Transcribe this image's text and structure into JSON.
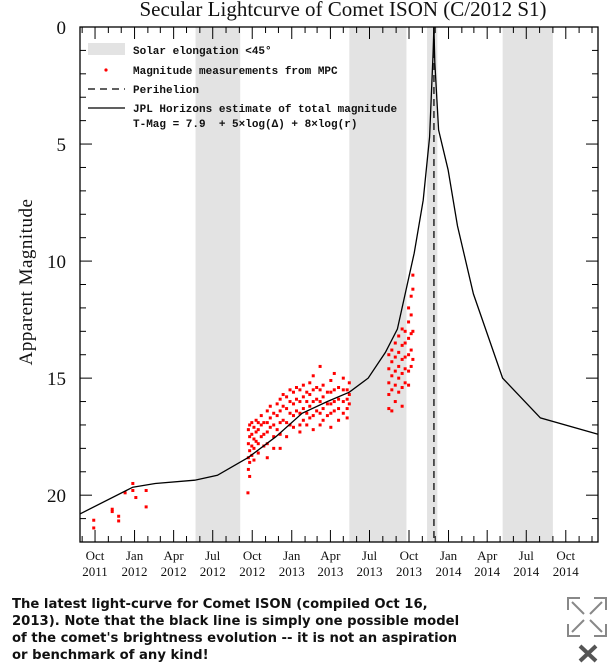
{
  "chart_data": {
    "type": "scatter",
    "title": "Secular Lightcurve of Comet ISON (C/2012 S1)",
    "ylabel": "Apparent Magnitude",
    "xlabel": "",
    "y_inverted": true,
    "ylim": [
      0,
      22
    ],
    "yticks": [
      0,
      5,
      10,
      15,
      20
    ],
    "xlim": [
      "2011-08-27",
      "2014-12-15"
    ],
    "xticks": [
      {
        "date": "2011-10-01",
        "label": [
          "Oct",
          "2011"
        ]
      },
      {
        "date": "2012-01-01",
        "label": [
          "Jan",
          "2012"
        ]
      },
      {
        "date": "2012-04-01",
        "label": [
          "Apr",
          "2012"
        ]
      },
      {
        "date": "2012-07-01",
        "label": [
          "Jul",
          "2012"
        ]
      },
      {
        "date": "2012-10-01",
        "label": [
          "Oct",
          "2012"
        ]
      },
      {
        "date": "2013-01-01",
        "label": [
          "Jan",
          "2013"
        ]
      },
      {
        "date": "2013-04-01",
        "label": [
          "Apr",
          "2013"
        ]
      },
      {
        "date": "2013-07-01",
        "label": [
          "Jul",
          "2013"
        ]
      },
      {
        "date": "2013-10-01",
        "label": [
          "Oct",
          "2013"
        ]
      },
      {
        "date": "2014-01-01",
        "label": [
          "Jan",
          "2014"
        ]
      },
      {
        "date": "2014-04-01",
        "label": [
          "Apr",
          "2014"
        ]
      },
      {
        "date": "2014-07-01",
        "label": [
          "Jul",
          "2014"
        ]
      },
      {
        "date": "2014-10-01",
        "label": [
          "Oct",
          "2014"
        ]
      }
    ],
    "grid": false,
    "legend_position": "top-left",
    "legend": {
      "elongation": "Solar elongation <45°",
      "measurements": "Magnitude measurements from MPC",
      "perihelion": "Perihelion",
      "model": "JPL Horizons estimate of total magnitude",
      "formula": "T-Mag = 7.9  + 5×log(Δ) + 8×log(r)"
    },
    "colors": {
      "measurements": "#ff0000",
      "elongation": "#e3e3e3",
      "model": "#000000",
      "perihelion": "#333333"
    },
    "elongation_bands": [
      [
        "2012-05-22",
        "2012-09-03"
      ],
      [
        "2013-05-15",
        "2013-09-25"
      ],
      [
        "2013-11-12",
        "2013-12-06"
      ],
      [
        "2014-05-07",
        "2014-09-01"
      ]
    ],
    "perihelion_date": "2013-11-28",
    "model_curve": [
      [
        "2011-08-15",
        20.8
      ],
      [
        "2011-12-28",
        19.66
      ],
      [
        "2012-02-18",
        19.5
      ],
      [
        "2012-05-20",
        19.36
      ],
      [
        "2012-07-12",
        19.15
      ],
      [
        "2012-09-21",
        18.4
      ],
      [
        "2012-11-25",
        17.5
      ],
      [
        "2013-01-25",
        16.5
      ],
      [
        "2013-03-25",
        16.0
      ],
      [
        "2013-05-15",
        15.6
      ],
      [
        "2013-06-28",
        15.0
      ],
      [
        "2013-08-07",
        13.9
      ],
      [
        "2013-09-04",
        12.9
      ],
      [
        "2013-10-13",
        9.66
      ],
      [
        "2013-11-03",
        7.4
      ],
      [
        "2013-11-18",
        4.7
      ],
      [
        "2013-11-26",
        1.1
      ],
      [
        "2013-11-28",
        -0.5
      ],
      [
        "2013-11-30",
        1.5
      ],
      [
        "2013-12-09",
        4.4
      ],
      [
        "2013-12-31",
        6.1
      ],
      [
        "2014-01-22",
        8.5
      ],
      [
        "2014-02-28",
        11.4
      ],
      [
        "2014-05-07",
        15.0
      ],
      [
        "2014-08-03",
        16.7
      ],
      [
        "2014-12-15",
        17.4
      ]
    ],
    "measurements": [
      {
        "date": "2011-09-28",
        "mags": [
          21.07,
          21.4
        ]
      },
      {
        "date": "2011-11-10",
        "mags": [
          20.6,
          20.7
        ]
      },
      {
        "date": "2011-11-25",
        "mags": [
          20.9,
          21.1
        ]
      },
      {
        "date": "2011-12-10",
        "mags": [
          19.9
        ]
      },
      {
        "date": "2011-12-28",
        "mags": [
          19.5,
          19.8
        ]
      },
      {
        "date": "2012-01-04",
        "mags": [
          20.1
        ]
      },
      {
        "date": "2012-01-28",
        "mags": [
          19.8,
          20.5
        ]
      },
      {
        "date": "2012-09-21",
        "mags": [
          19.9
        ]
      },
      {
        "date": "2012-09-22",
        "mags": [
          17.2,
          17.8,
          18.4,
          18.9
        ]
      },
      {
        "date": "2012-09-25",
        "mags": [
          17.0,
          17.5,
          18.1,
          18.6,
          19.2
        ]
      },
      {
        "date": "2012-09-30",
        "mags": [
          16.9,
          17.4,
          17.9,
          18.3
        ]
      },
      {
        "date": "2012-10-05",
        "mags": [
          17.1,
          17.6,
          18.0,
          18.5
        ]
      },
      {
        "date": "2012-10-10",
        "mags": [
          16.8,
          17.3,
          17.7
        ]
      },
      {
        "date": "2012-10-15",
        "mags": [
          16.9,
          17.2,
          17.8,
          18.2
        ]
      },
      {
        "date": "2012-10-22",
        "mags": [
          16.6,
          17.0,
          17.5
        ]
      },
      {
        "date": "2012-10-28",
        "mags": [
          16.9,
          17.4,
          17.9
        ]
      },
      {
        "date": "2012-11-05",
        "mags": [
          16.4,
          16.9,
          17.3,
          17.8,
          18.4
        ]
      },
      {
        "date": "2012-11-12",
        "mags": [
          16.2,
          16.7,
          17.1
        ]
      },
      {
        "date": "2012-11-20",
        "mags": [
          16.5,
          17.0,
          17.5,
          18.0
        ]
      },
      {
        "date": "2012-11-28",
        "mags": [
          16.1,
          16.6,
          17.2
        ]
      },
      {
        "date": "2012-12-05",
        "mags": [
          15.9,
          16.4,
          16.9,
          17.4,
          18.0
        ]
      },
      {
        "date": "2012-12-12",
        "mags": [
          15.7,
          16.2,
          16.8
        ]
      },
      {
        "date": "2012-12-20",
        "mags": [
          15.8,
          16.3,
          16.9,
          17.5
        ]
      },
      {
        "date": "2012-12-28",
        "mags": [
          15.5,
          16.0,
          16.5,
          17.0
        ]
      },
      {
        "date": "2013-01-05",
        "mags": [
          15.6,
          16.1,
          16.6,
          17.1
        ]
      },
      {
        "date": "2013-01-12",
        "mags": [
          15.4,
          15.9,
          16.4
        ]
      },
      {
        "date": "2013-01-20",
        "mags": [
          15.5,
          16.0,
          16.5,
          17.0,
          17.3
        ]
      },
      {
        "date": "2013-01-28",
        "mags": [
          15.3,
          15.8,
          16.3,
          16.8
        ]
      },
      {
        "date": "2013-02-05",
        "mags": [
          15.6,
          16.0,
          16.5,
          17.0
        ]
      },
      {
        "date": "2013-02-12",
        "mags": [
          15.2,
          15.7,
          16.2,
          16.7
        ]
      },
      {
        "date": "2013-02-20",
        "mags": [
          14.9,
          15.5,
          16.0,
          16.6,
          17.2
        ]
      },
      {
        "date": "2013-02-28",
        "mags": [
          15.4,
          15.9,
          16.4
        ]
      },
      {
        "date": "2013-03-08",
        "mags": [
          14.5,
          15.5,
          16.0,
          16.5,
          17.0
        ]
      },
      {
        "date": "2013-03-15",
        "mags": [
          15.3,
          15.8,
          16.3,
          16.8
        ]
      },
      {
        "date": "2013-03-25",
        "mags": [
          15.6,
          16.1,
          16.6
        ]
      },
      {
        "date": "2013-04-02",
        "mags": [
          15.1,
          15.6,
          16.1,
          16.5,
          17.1
        ]
      },
      {
        "date": "2013-04-10",
        "mags": [
          14.8,
          15.5,
          16.0,
          16.4
        ]
      },
      {
        "date": "2013-04-20",
        "mags": [
          15.4,
          15.9,
          16.3,
          16.8
        ]
      },
      {
        "date": "2013-05-01",
        "mags": [
          15.0,
          15.5,
          16.0,
          16.5
        ]
      },
      {
        "date": "2013-05-10",
        "mags": [
          15.5,
          15.9,
          16.3,
          16.7
        ]
      },
      {
        "date": "2013-05-15",
        "mags": [
          15.2,
          15.7,
          16.1
        ]
      },
      {
        "date": "2013-08-15",
        "mags": [
          14.0,
          14.6,
          15.2,
          15.7,
          16.3
        ]
      },
      {
        "date": "2013-08-22",
        "mags": [
          13.8,
          14.3,
          14.9,
          15.5,
          16.4
        ]
      },
      {
        "date": "2013-08-30",
        "mags": [
          13.5,
          14.1,
          14.7,
          15.3,
          16.0
        ]
      },
      {
        "date": "2013-09-07",
        "mags": [
          13.2,
          13.9,
          14.5,
          15.0,
          15.6
        ]
      },
      {
        "date": "2013-09-15",
        "mags": [
          12.9,
          13.6,
          14.2,
          14.8,
          15.4,
          16.2
        ]
      },
      {
        "date": "2013-09-22",
        "mags": [
          13.0,
          13.5,
          14.1,
          14.6,
          15.2
        ]
      },
      {
        "date": "2013-09-30",
        "mags": [
          12.0,
          12.6,
          13.3,
          14.0,
          14.7,
          15.3
        ]
      },
      {
        "date": "2013-10-06",
        "mags": [
          11.5,
          12.3,
          13.1,
          13.8,
          14.5
        ]
      },
      {
        "date": "2013-10-10",
        "mags": [
          10.6,
          11.2,
          13.0,
          14.2
        ]
      }
    ]
  },
  "caption": "The latest light-curve for Comet ISON (compiled Oct 16, 2013). Note that the black line is simply one possible model of the comet's brightness evolution -- it is not an aspiration or benchmark of any kind!",
  "icons": {
    "expand": "expand-arrows-icon",
    "close": "close-x-icon"
  }
}
